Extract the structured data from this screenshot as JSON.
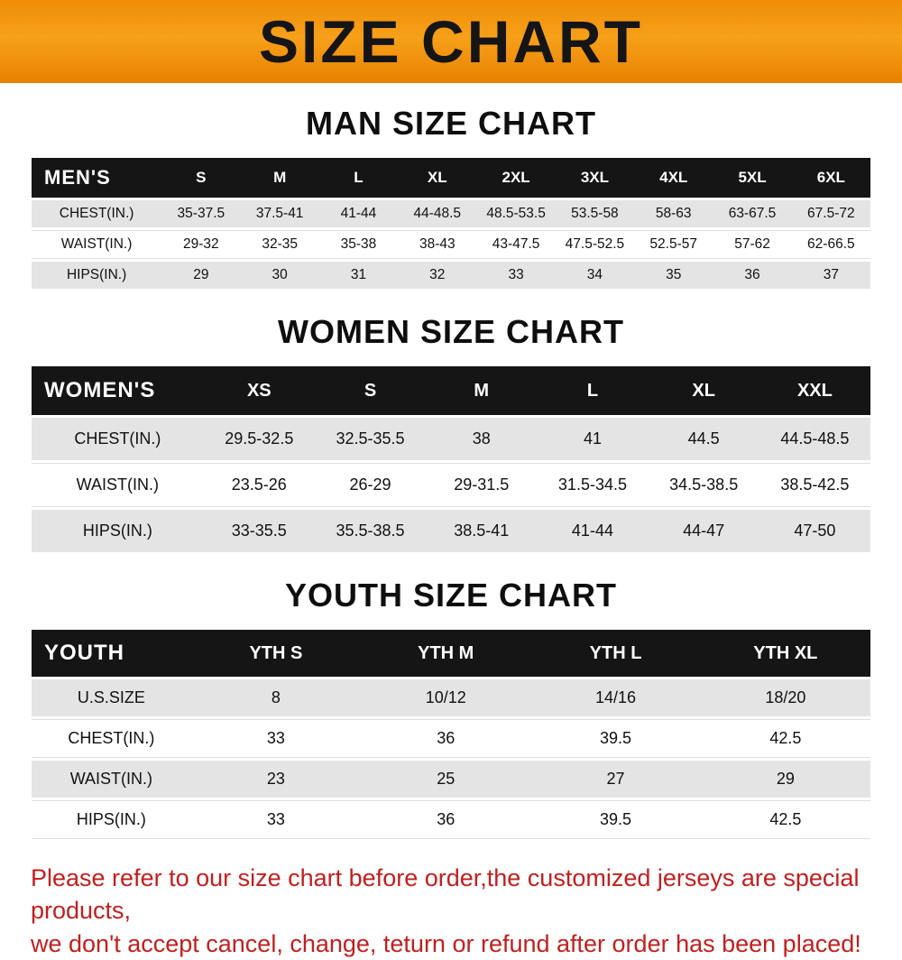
{
  "banner": {
    "title": "SIZE CHART"
  },
  "colors": {
    "banner_orange": "#f7a01a",
    "table_header_black": "#151515",
    "row_gray": "#e4e4e4",
    "note_red": "#c41e1e"
  },
  "sections": {
    "men": {
      "heading": "MAN SIZE CHART",
      "table": {
        "header": [
          "MEN'S",
          "S",
          "M",
          "L",
          "XL",
          "2XL",
          "3XL",
          "4XL",
          "5XL",
          "6XL"
        ],
        "rows": [
          [
            "CHEST(IN.)",
            "35-37.5",
            "37.5-41",
            "41-44",
            "44-48.5",
            "48.5-53.5",
            "53.5-58",
            "58-63",
            "63-67.5",
            "67.5-72"
          ],
          [
            "WAIST(IN.)",
            "29-32",
            "32-35",
            "35-38",
            "38-43",
            "43-47.5",
            "47.5-52.5",
            "52.5-57",
            "57-62",
            "62-66.5"
          ],
          [
            "HIPS(IN.)",
            "29",
            "30",
            "31",
            "32",
            "33",
            "34",
            "35",
            "36",
            "37"
          ]
        ]
      }
    },
    "women": {
      "heading": "WOMEN SIZE CHART",
      "table": {
        "header": [
          "WOMEN'S",
          "XS",
          "S",
          "M",
          "L",
          "XL",
          "XXL"
        ],
        "rows": [
          [
            "CHEST(IN.)",
            "29.5-32.5",
            "32.5-35.5",
            "38",
            "41",
            "44.5",
            "44.5-48.5"
          ],
          [
            "WAIST(IN.)",
            "23.5-26",
            "26-29",
            "29-31.5",
            "31.5-34.5",
            "34.5-38.5",
            "38.5-42.5"
          ],
          [
            "HIPS(IN.)",
            "33-35.5",
            "35.5-38.5",
            "38.5-41",
            "41-44",
            "44-47",
            "47-50"
          ]
        ]
      }
    },
    "youth": {
      "heading": "YOUTH SIZE CHART",
      "table": {
        "header": [
          "YOUTH",
          "YTH S",
          "YTH M",
          "YTH L",
          "YTH XL"
        ],
        "rows": [
          [
            "U.S.SIZE",
            "8",
            "10/12",
            "14/16",
            "18/20"
          ],
          [
            "CHEST(IN.)",
            "33",
            "36",
            "39.5",
            "42.5"
          ],
          [
            "WAIST(IN.)",
            "23",
            "25",
            "27",
            "29"
          ],
          [
            "HIPS(IN.)",
            "33",
            "36",
            "39.5",
            "42.5"
          ]
        ]
      }
    }
  },
  "footer": {
    "line1": "Please refer to our size chart before order,the customized jerseys are special products,",
    "line2": "we don't accept cancel, change, teturn or refund after order has been placed!"
  }
}
